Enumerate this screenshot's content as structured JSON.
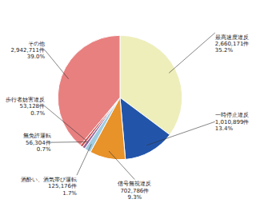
{
  "chart_data": {
    "type": "pie",
    "categories": [
      "最高速度違反",
      "一時停止違反",
      "信号無視違反",
      "酒酔い、酒気帯び運転",
      "無免許運転",
      "歩行者妨害違反",
      "その他"
    ],
    "values": [
      2660171,
      1010899,
      702786,
      125176,
      56304,
      53128,
      2942711
    ],
    "value_labels": [
      "2,660,171件",
      "1,010,899件",
      "702,786件",
      "125,176件",
      "56,304件",
      "53,128件",
      "2,942,711件"
    ],
    "shares": [
      35.2,
      13.4,
      9.3,
      1.7,
      0.7,
      0.7,
      39.0
    ],
    "share_labels": [
      "35.2%",
      "13.4%",
      "9.3%",
      "1.7%",
      "0.7%",
      "0.7%",
      "39.0%"
    ],
    "colors": [
      "#eeeebb",
      "#2255aa",
      "#e8922a",
      "#a0cce0",
      "#996699",
      "#cc5555",
      "#e88080"
    ]
  }
}
